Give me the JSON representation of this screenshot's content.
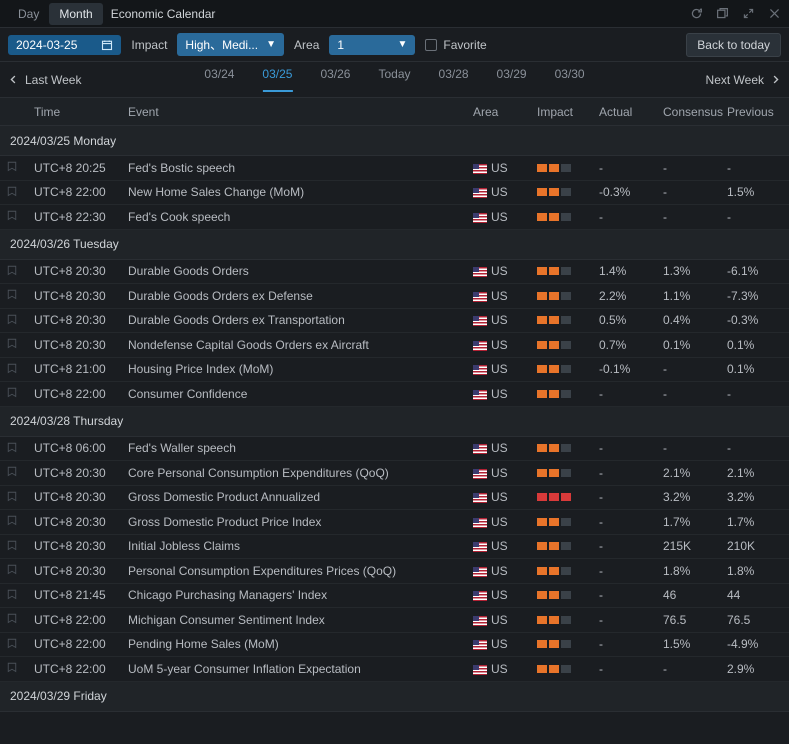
{
  "tabs": {
    "day": "Day",
    "month": "Month",
    "title": "Economic Calendar"
  },
  "filters": {
    "date": "2024-03-25",
    "impact_label": "Impact",
    "impact_value": "High、Medi...",
    "area_label": "Area",
    "area_value": "1",
    "favorite_label": "Favorite",
    "back_today": "Back to today"
  },
  "nav": {
    "last_week": "Last Week",
    "next_week": "Next Week",
    "dates": [
      "03/24",
      "03/25",
      "03/26",
      "Today",
      "03/28",
      "03/29",
      "03/30"
    ],
    "selected_index": 1
  },
  "columns": {
    "time": "Time",
    "event": "Event",
    "area": "Area",
    "impact": "Impact",
    "actual": "Actual",
    "consensus": "Consensus",
    "previous": "Previous"
  },
  "days": [
    {
      "header": "2024/03/25 Monday",
      "rows": [
        {
          "time": "UTC+8 20:25",
          "event": "Fed's Bostic speech",
          "area": "US",
          "impact": 2,
          "impact_color": "orange",
          "actual": "-",
          "consensus": "-",
          "previous": "-"
        },
        {
          "time": "UTC+8 22:00",
          "event": "New Home Sales Change (MoM)",
          "area": "US",
          "impact": 2,
          "impact_color": "orange",
          "actual": "-0.3%",
          "consensus": "-",
          "previous": "1.5%"
        },
        {
          "time": "UTC+8 22:30",
          "event": "Fed's Cook speech",
          "area": "US",
          "impact": 2,
          "impact_color": "orange",
          "actual": "-",
          "consensus": "-",
          "previous": "-"
        }
      ]
    },
    {
      "header": "2024/03/26 Tuesday",
      "rows": [
        {
          "time": "UTC+8 20:30",
          "event": "Durable Goods Orders",
          "area": "US",
          "impact": 2,
          "impact_color": "orange",
          "actual": "1.4%",
          "consensus": "1.3%",
          "previous": "-6.1%"
        },
        {
          "time": "UTC+8 20:30",
          "event": "Durable Goods Orders ex Defense",
          "area": "US",
          "impact": 2,
          "impact_color": "orange",
          "actual": "2.2%",
          "consensus": "1.1%",
          "previous": "-7.3%"
        },
        {
          "time": "UTC+8 20:30",
          "event": "Durable Goods Orders ex Transportation",
          "area": "US",
          "impact": 2,
          "impact_color": "orange",
          "actual": "0.5%",
          "consensus": "0.4%",
          "previous": "-0.3%"
        },
        {
          "time": "UTC+8 20:30",
          "event": "Nondefense Capital Goods Orders ex Aircraft",
          "area": "US",
          "impact": 2,
          "impact_color": "orange",
          "actual": "0.7%",
          "consensus": "0.1%",
          "previous": "0.1%"
        },
        {
          "time": "UTC+8 21:00",
          "event": "Housing Price Index (MoM)",
          "area": "US",
          "impact": 2,
          "impact_color": "orange",
          "actual": "-0.1%",
          "consensus": "-",
          "previous": "0.1%"
        },
        {
          "time": "UTC+8 22:00",
          "event": "Consumer Confidence",
          "area": "US",
          "impact": 2,
          "impact_color": "orange",
          "actual": "-",
          "consensus": "-",
          "previous": "-"
        }
      ]
    },
    {
      "header": "2024/03/28 Thursday",
      "rows": [
        {
          "time": "UTC+8 06:00",
          "event": "Fed's Waller speech",
          "area": "US",
          "impact": 2,
          "impact_color": "orange",
          "actual": "-",
          "consensus": "-",
          "previous": "-"
        },
        {
          "time": "UTC+8 20:30",
          "event": "Core Personal Consumption Expenditures (QoQ)",
          "area": "US",
          "impact": 2,
          "impact_color": "orange",
          "actual": "-",
          "consensus": "2.1%",
          "previous": "2.1%"
        },
        {
          "time": "UTC+8 20:30",
          "event": "Gross Domestic Product Annualized",
          "area": "US",
          "impact": 3,
          "impact_color": "red",
          "actual": "-",
          "consensus": "3.2%",
          "previous": "3.2%"
        },
        {
          "time": "UTC+8 20:30",
          "event": "Gross Domestic Product Price Index",
          "area": "US",
          "impact": 2,
          "impact_color": "orange",
          "actual": "-",
          "consensus": "1.7%",
          "previous": "1.7%"
        },
        {
          "time": "UTC+8 20:30",
          "event": "Initial Jobless Claims",
          "area": "US",
          "impact": 2,
          "impact_color": "orange",
          "actual": "-",
          "consensus": "215K",
          "previous": "210K"
        },
        {
          "time": "UTC+8 20:30",
          "event": "Personal Consumption Expenditures Prices (QoQ)",
          "area": "US",
          "impact": 2,
          "impact_color": "orange",
          "actual": "-",
          "consensus": "1.8%",
          "previous": "1.8%"
        },
        {
          "time": "UTC+8 21:45",
          "event": "Chicago Purchasing Managers' Index",
          "area": "US",
          "impact": 2,
          "impact_color": "orange",
          "actual": "-",
          "consensus": "46",
          "previous": "44"
        },
        {
          "time": "UTC+8 22:00",
          "event": "Michigan Consumer Sentiment Index",
          "area": "US",
          "impact": 2,
          "impact_color": "orange",
          "actual": "-",
          "consensus": "76.5",
          "previous": "76.5"
        },
        {
          "time": "UTC+8 22:00",
          "event": "Pending Home Sales (MoM)",
          "area": "US",
          "impact": 2,
          "impact_color": "orange",
          "actual": "-",
          "consensus": "1.5%",
          "previous": "-4.9%"
        },
        {
          "time": "UTC+8 22:00",
          "event": "UoM 5-year Consumer Inflation Expectation",
          "area": "US",
          "impact": 2,
          "impact_color": "orange",
          "actual": "-",
          "consensus": "-",
          "previous": "2.9%"
        }
      ]
    },
    {
      "header": "2024/03/29 Friday",
      "rows": []
    }
  ]
}
